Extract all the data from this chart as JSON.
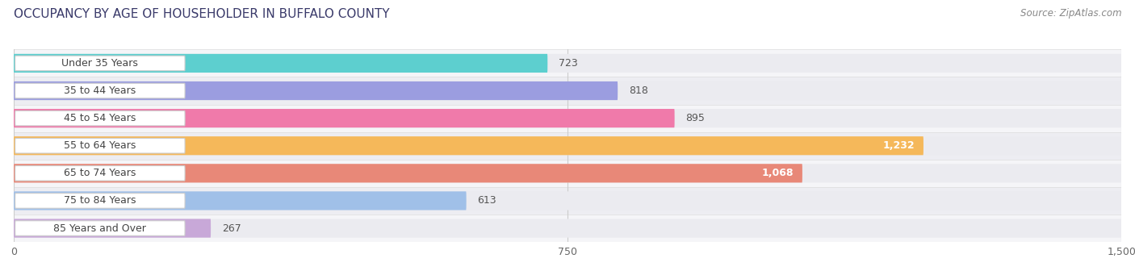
{
  "title": "OCCUPANCY BY AGE OF HOUSEHOLDER IN BUFFALO COUNTY",
  "source": "Source: ZipAtlas.com",
  "categories": [
    "Under 35 Years",
    "35 to 44 Years",
    "45 to 54 Years",
    "55 to 64 Years",
    "65 to 74 Years",
    "75 to 84 Years",
    "85 Years and Over"
  ],
  "values": [
    723,
    818,
    895,
    1232,
    1068,
    613,
    267
  ],
  "bar_colors": [
    "#5dcfcf",
    "#9b9de0",
    "#f07aaa",
    "#f5b85a",
    "#e88878",
    "#a0c0e8",
    "#c8a8d8"
  ],
  "xlim": [
    0,
    1500
  ],
  "xticks": [
    0,
    750,
    1500
  ],
  "background_color": "#ffffff",
  "bar_bg_color": "#ebebf0",
  "title_fontsize": 11,
  "label_fontsize": 9,
  "value_fontsize": 9,
  "bar_height": 0.68,
  "figsize": [
    14.06,
    3.41
  ],
  "value_inside": [
    1232,
    1068
  ],
  "row_bg_colors": [
    "#f8f8f8",
    "#f0f0f4"
  ]
}
